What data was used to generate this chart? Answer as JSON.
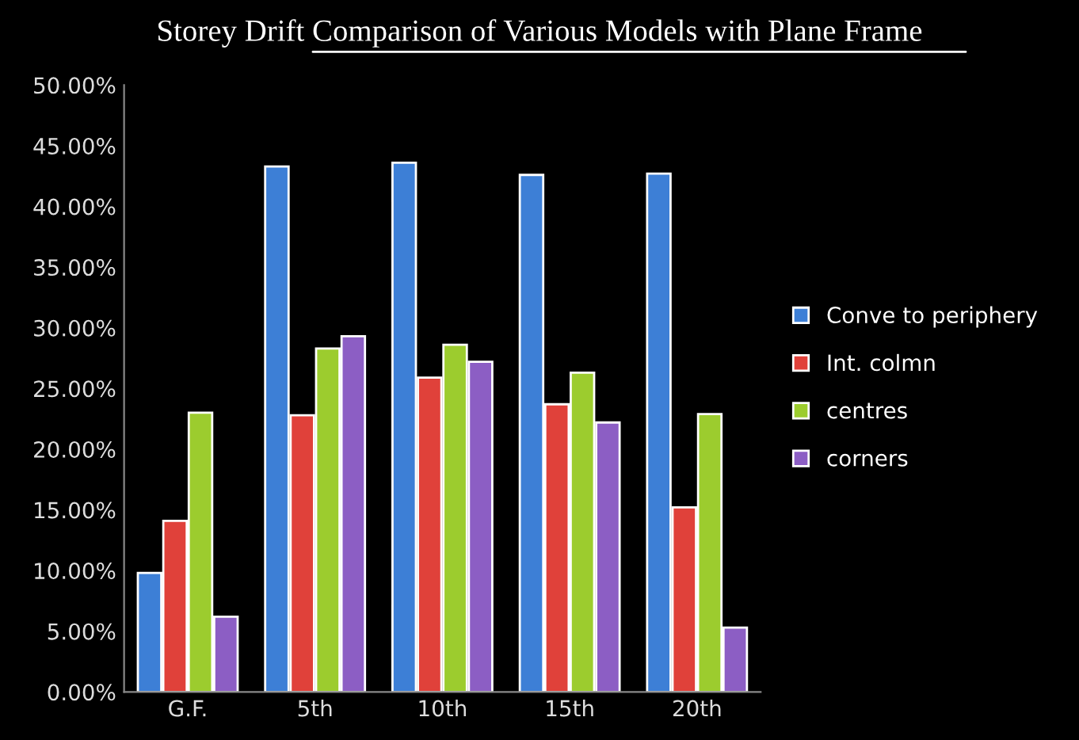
{
  "chart_data": {
    "type": "bar",
    "title": "Storey Drift Comparison of Various Models with Plane Frame",
    "categories": [
      "G.F.",
      "5th",
      "10th",
      "15th",
      "20th"
    ],
    "series": [
      {
        "name": "Conve to periphery",
        "color": "#3d7fd6",
        "values": [
          9.8,
          43.3,
          43.6,
          42.6,
          42.7
        ]
      },
      {
        "name": "Int. colmn",
        "color": "#e0413a",
        "values": [
          14.1,
          22.8,
          25.9,
          23.7,
          15.2
        ]
      },
      {
        "name": "centres",
        "color": "#9ccc2e",
        "values": [
          23.0,
          28.3,
          28.6,
          26.3,
          22.9
        ]
      },
      {
        "name": "corners",
        "color": "#8c5ec4",
        "values": [
          6.2,
          29.3,
          27.2,
          22.2,
          5.3
        ]
      }
    ],
    "ylim": [
      0,
      50
    ],
    "yticks": [
      {
        "value": 0,
        "label": "0.00%"
      },
      {
        "value": 5,
        "label": "5.00%"
      },
      {
        "value": 10,
        "label": "10.00%"
      },
      {
        "value": 15,
        "label": "15.00%"
      },
      {
        "value": 20,
        "label": "20.00%"
      },
      {
        "value": 25,
        "label": "25.00%"
      },
      {
        "value": 30,
        "label": "30.00%"
      },
      {
        "value": 35,
        "label": "35.00%"
      },
      {
        "value": 40,
        "label": "40.00%"
      },
      {
        "value": 45,
        "label": "45.00%"
      },
      {
        "value": 50,
        "label": "50.00%"
      }
    ],
    "grid": false,
    "legend": "right"
  }
}
